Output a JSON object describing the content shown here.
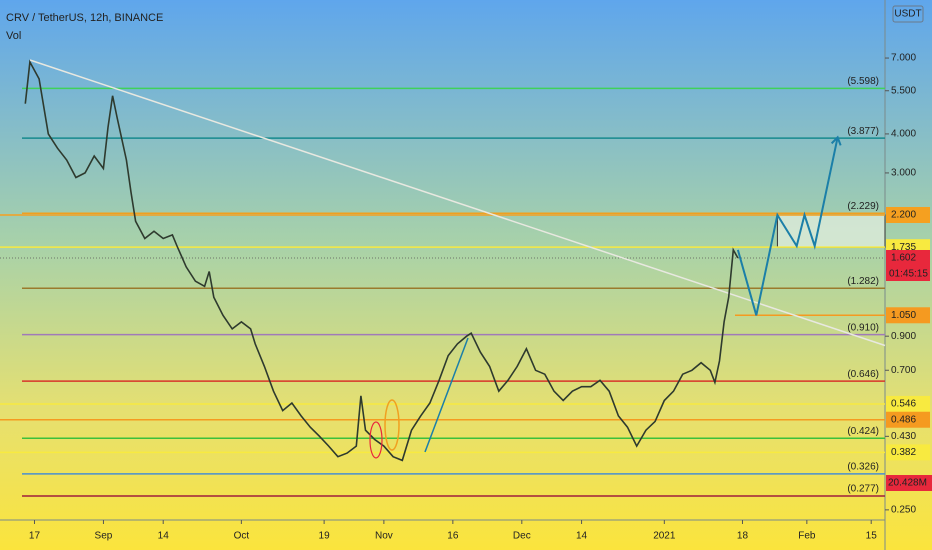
{
  "chart_data": {
    "type": "line",
    "title": "CRV / TetherUS, 12h, BINANCE",
    "indicator": "Vol",
    "currency": "USDT",
    "log_scale": true,
    "color": "#2e3a2e",
    "ylim": [
      0.232,
      10.74
    ],
    "yticks": [
      {
        "value": 7,
        "label": "7.000"
      },
      {
        "value": 5.5,
        "label": "5.500"
      },
      {
        "value": 4,
        "label": "4.000"
      },
      {
        "value": 3,
        "label": "3.000"
      },
      {
        "value": 0.9,
        "label": "0.900"
      },
      {
        "value": 0.7,
        "label": "0.700"
      },
      {
        "value": 0.43,
        "label": "0.430"
      },
      {
        "value": 0.25,
        "label": "0.250"
      }
    ],
    "xlim": [
      -7.5,
      185
    ],
    "xticks": [
      {
        "value": 0,
        "label": "17"
      },
      {
        "value": 15,
        "label": "Sep"
      },
      {
        "value": 28,
        "label": "14"
      },
      {
        "value": 45,
        "label": "Oct"
      },
      {
        "value": 63,
        "label": "19"
      },
      {
        "value": 76,
        "label": "Nov"
      },
      {
        "value": 91,
        "label": "16"
      },
      {
        "value": 106,
        "label": "Dec"
      },
      {
        "value": 119,
        "label": "14"
      },
      {
        "value": 137,
        "label": "2021"
      },
      {
        "value": 154,
        "label": "18"
      },
      {
        "value": 168,
        "label": "Feb"
      },
      {
        "value": 182,
        "label": "15"
      }
    ],
    "x": [
      -2,
      -1,
      1,
      3,
      5,
      7,
      9,
      11,
      13,
      15,
      16,
      17,
      18,
      20,
      21,
      22,
      24,
      26,
      28,
      30,
      31,
      33,
      35,
      37,
      38,
      39,
      41,
      43,
      45,
      47,
      48,
      50,
      52,
      54,
      56,
      58,
      60,
      62,
      64,
      66,
      68,
      70,
      71,
      72,
      74,
      76,
      78,
      80,
      82,
      84,
      86,
      88,
      90,
      92,
      94,
      95,
      97,
      99,
      101,
      103,
      105,
      107,
      109,
      111,
      113,
      115,
      117,
      119,
      121,
      123,
      125,
      127,
      129,
      131,
      133,
      135,
      137,
      139,
      141,
      143,
      145,
      147,
      148,
      149,
      150,
      151,
      152,
      153
    ],
    "values": [
      5.0,
      6.8,
      6.0,
      4.0,
      3.6,
      3.3,
      2.9,
      3.0,
      3.4,
      3.1,
      4.2,
      5.3,
      4.5,
      3.3,
      2.6,
      2.1,
      1.85,
      1.95,
      1.85,
      1.9,
      1.75,
      1.5,
      1.35,
      1.3,
      1.45,
      1.2,
      1.05,
      0.95,
      1.0,
      0.95,
      0.85,
      0.72,
      0.6,
      0.52,
      0.55,
      0.5,
      0.46,
      0.43,
      0.4,
      0.37,
      0.38,
      0.4,
      0.58,
      0.45,
      0.42,
      0.4,
      0.37,
      0.36,
      0.45,
      0.5,
      0.55,
      0.65,
      0.78,
      0.85,
      0.9,
      0.92,
      0.8,
      0.72,
      0.6,
      0.65,
      0.72,
      0.82,
      0.7,
      0.68,
      0.6,
      0.56,
      0.6,
      0.62,
      0.62,
      0.65,
      0.6,
      0.5,
      0.46,
      0.4,
      0.45,
      0.48,
      0.56,
      0.6,
      0.68,
      0.7,
      0.74,
      0.7,
      0.64,
      0.75,
      1.0,
      1.2,
      1.7,
      1.602
    ],
    "levels": [
      {
        "value": 5.598,
        "label": "(5.598)",
        "color": "#3fd15a"
      },
      {
        "value": 3.877,
        "label": "(3.877)",
        "color": "#168a8e"
      },
      {
        "value": 2.229,
        "label": "(2.229)",
        "color": "#f0a020"
      },
      {
        "value": 1.282,
        "label": "(1.282)",
        "color": "#9b7a2c"
      },
      {
        "value": 0.91,
        "label": "(0.910)",
        "color": "#a07ab8"
      },
      {
        "value": 0.646,
        "label": "(0.646)",
        "color": "#d8342a"
      },
      {
        "value": 0.424,
        "label": "(0.424)",
        "color": "#3cc03c"
      },
      {
        "value": 0.326,
        "label": "(0.326)",
        "color": "#4a8fd0"
      },
      {
        "value": 0.277,
        "label": "(0.277)",
        "color": "#a01e3c"
      }
    ],
    "badges": [
      {
        "value": 2.2,
        "label": "2.200",
        "color": "#f5a020"
      },
      {
        "value": 1.735,
        "label": "1.735",
        "color": "#f8ea40"
      },
      {
        "value": 1.602,
        "label": "1.602",
        "color": "#e8283c"
      },
      {
        "value": 1.05,
        "label": "1.050",
        "color": "#f59a20"
      },
      {
        "value": 0.546,
        "label": "0.546",
        "color": "#f8ea40"
      },
      {
        "value": 0.486,
        "label": "0.486",
        "color": "#f59a20"
      },
      {
        "value": 0.382,
        "label": "0.382",
        "color": "#f8ea40"
      }
    ],
    "countdown": "01:45:15",
    "volume_label": "20.428M",
    "trendline": {
      "x": [
        -1,
        185
      ],
      "values": [
        6.9,
        0.84
      ],
      "color": "#e8e8e0"
    },
    "projection": {
      "x": [
        153,
        157,
        161.6,
        165.8,
        167.5,
        169.7,
        174.7
      ],
      "values": [
        1.7,
        1.05,
        2.2,
        1.75,
        2.2,
        1.75,
        3.9
      ],
      "color": "#1b7fa8"
    },
    "box": {
      "xlim": [
        161.6,
        185
      ],
      "ylim": [
        1.735,
        2.2
      ]
    }
  }
}
